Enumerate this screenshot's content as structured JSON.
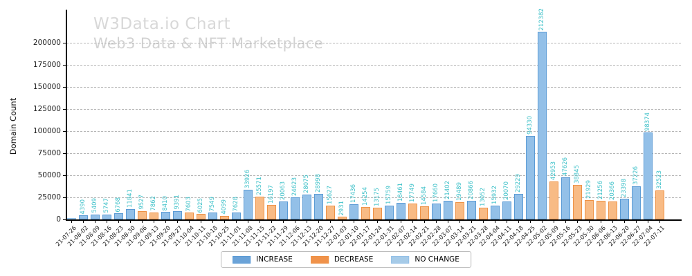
{
  "watermark": {
    "title": "W3Data.io Chart",
    "subtitle": "Web3 Data & NFT Marketplace"
  },
  "y_axis": {
    "label": "Domain Count",
    "ticks": [
      0,
      25000,
      50000,
      75000,
      100000,
      125000,
      150000,
      175000,
      200000
    ]
  },
  "legend": [
    {
      "label": "INCREASE",
      "fill": "#6BA3D8",
      "edge": "#5B9BD5"
    },
    {
      "label": "DECREASE",
      "fill": "#F0924A",
      "edge": "#EE9246"
    },
    {
      "label": "NO CHANGE",
      "fill": "#A6CBE8",
      "edge": "#93C0E8"
    }
  ],
  "colors": {
    "value_label": "#3fc1c9",
    "increase_fill": "#93C0E8",
    "decrease_fill": "#F8BB85",
    "no_change_fill": "#B5D6F2"
  },
  "chart_data": {
    "type": "bar",
    "title": "W3Data.io Chart",
    "subtitle": "Web3 Data & NFT Marketplace",
    "xlabel": "",
    "ylabel": "Domain Count",
    "ylim": [
      0,
      218000
    ],
    "grid": "horizontal-dashed",
    "legend_position": "bottom-center",
    "categories": [
      "21-07-26",
      "21-08-02",
      "21-08-09",
      "21-08-16",
      "21-08-23",
      "21-08-30",
      "21-09-06",
      "21-09-13",
      "21-09-20",
      "21-09-27",
      "21-10-04",
      "21-10-11",
      "21-10-18",
      "21-10-25",
      "21-11-01",
      "21-11-08",
      "21-11-15",
      "21-11-22",
      "21-11-29",
      "21-12-06",
      "21-12-13",
      "21-12-20",
      "21-12-27",
      "22-01-03",
      "22-01-10",
      "22-01-17",
      "22-01-24",
      "22-01-31",
      "22-02-07",
      "22-02-14",
      "22-02-21",
      "22-02-28",
      "22-03-07",
      "22-03-14",
      "22-03-21",
      "22-03-28",
      "22-04-04",
      "22-04-11",
      "22-04-18",
      "22-04-25",
      "22-05-02",
      "22-05-09",
      "22-05-16",
      "22-05-23",
      "22-05-30",
      "22-06-06",
      "22-06-13",
      "22-06-20",
      "22-06-27",
      "22-07-04",
      "22-07-11"
    ],
    "values": [
      1922,
      4390,
      5409,
      5747,
      6768,
      11841,
      9527,
      7862,
      8410,
      9391,
      7603,
      6025,
      7549,
      4099,
      7628,
      33926,
      25571,
      16197,
      20063,
      24623,
      28075,
      28998,
      15627,
      2931,
      17436,
      14254,
      13175,
      15759,
      18461,
      17749,
      14584,
      17660,
      21402,
      19489,
      20866,
      13052,
      15932,
      20070,
      29229,
      94330,
      212382,
      42953,
      47626,
      38845,
      21929,
      21256,
      20366,
      23398,
      37226,
      98374,
      32523
    ],
    "bar_labels": [
      "",
      "4390",
      "5409",
      "5747",
      "6768",
      "11841",
      "9527",
      "7862",
      "8410",
      "9391",
      "7603",
      "6025",
      "7549",
      "4099",
      "7628",
      "33926",
      "25571",
      "16197",
      "20063",
      "24623",
      "28075",
      "28998",
      "15627",
      "2931",
      "17436",
      "14254",
      "13175",
      "15759",
      "18461",
      "17749",
      "14584",
      "17660",
      "21402",
      "19489",
      "20866",
      "13052",
      "15932",
      "20070",
      "29229",
      "94330",
      "212382",
      "42953",
      "47626",
      "38845",
      "21929",
      "21256",
      "20366",
      "23398",
      "37226",
      "98374",
      "32523"
    ],
    "changes": [
      "no_change",
      "increase",
      "increase",
      "increase",
      "increase",
      "increase",
      "decrease",
      "decrease",
      "increase",
      "increase",
      "decrease",
      "decrease",
      "increase",
      "decrease",
      "increase",
      "increase",
      "decrease",
      "decrease",
      "increase",
      "increase",
      "increase",
      "increase",
      "decrease",
      "decrease",
      "increase",
      "decrease",
      "decrease",
      "increase",
      "increase",
      "decrease",
      "decrease",
      "increase",
      "increase",
      "decrease",
      "increase",
      "decrease",
      "increase",
      "increase",
      "increase",
      "increase",
      "increase",
      "decrease",
      "increase",
      "decrease",
      "decrease",
      "decrease",
      "decrease",
      "increase",
      "increase",
      "increase",
      "decrease"
    ]
  }
}
